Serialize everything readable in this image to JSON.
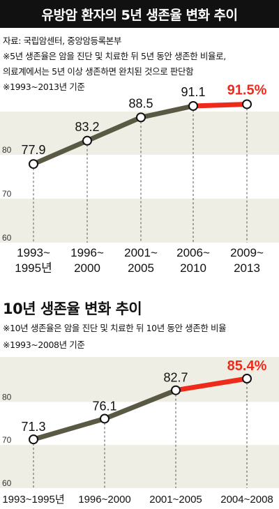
{
  "title": "유방암 환자의 5년 생존율 변화 추이",
  "notes1": [
    "자료: 국립암센터, 중앙암등록본부",
    "※5년 생존율은 암을 진단 및 치료한 뒤 5년 동안 생존한 비율로,",
    "의료계에서는 5년 이상 생존하면 완치된 것으로 판단함",
    "※1993~2013년 기준"
  ],
  "section2_title": "10년 생존율 변화 추이",
  "notes2": [
    "※10년 생존율은 암을 진단 및 치료한 뒤 10년 동안 생존한 비율",
    "※1993~2008년 기준"
  ],
  "colors": {
    "line": "#5a5a44",
    "highlight": "#ee2a1b",
    "band": "#efeee4"
  },
  "chart_data": [
    {
      "type": "line",
      "categories": [
        [
          "1993~",
          "1995년"
        ],
        [
          "1996~",
          "2000"
        ],
        [
          "2001~",
          "2005"
        ],
        [
          "2006~",
          "2010"
        ],
        [
          "2009~",
          "2013"
        ]
      ],
      "values": [
        77.9,
        83.2,
        88.5,
        91.1,
        91.5
      ],
      "value_labels": [
        "77.9",
        "83.2",
        "88.5",
        "91.1",
        "91.5%"
      ],
      "highlight_last": true,
      "yticks": [
        60,
        70,
        80
      ],
      "ylim": [
        60,
        91.1
      ]
    },
    {
      "type": "line",
      "categories": [
        [
          "1993~1995년"
        ],
        [
          "1996~2000"
        ],
        [
          "2001~2005"
        ],
        [
          "2004~2008"
        ]
      ],
      "values": [
        71.3,
        76.1,
        82.7,
        85.4
      ],
      "value_labels": [
        "71.3",
        "76.1",
        "82.7",
        "85.4%"
      ],
      "highlight_last": true,
      "yticks": [
        60,
        70,
        80
      ],
      "ylim": [
        60,
        85.4
      ]
    }
  ]
}
